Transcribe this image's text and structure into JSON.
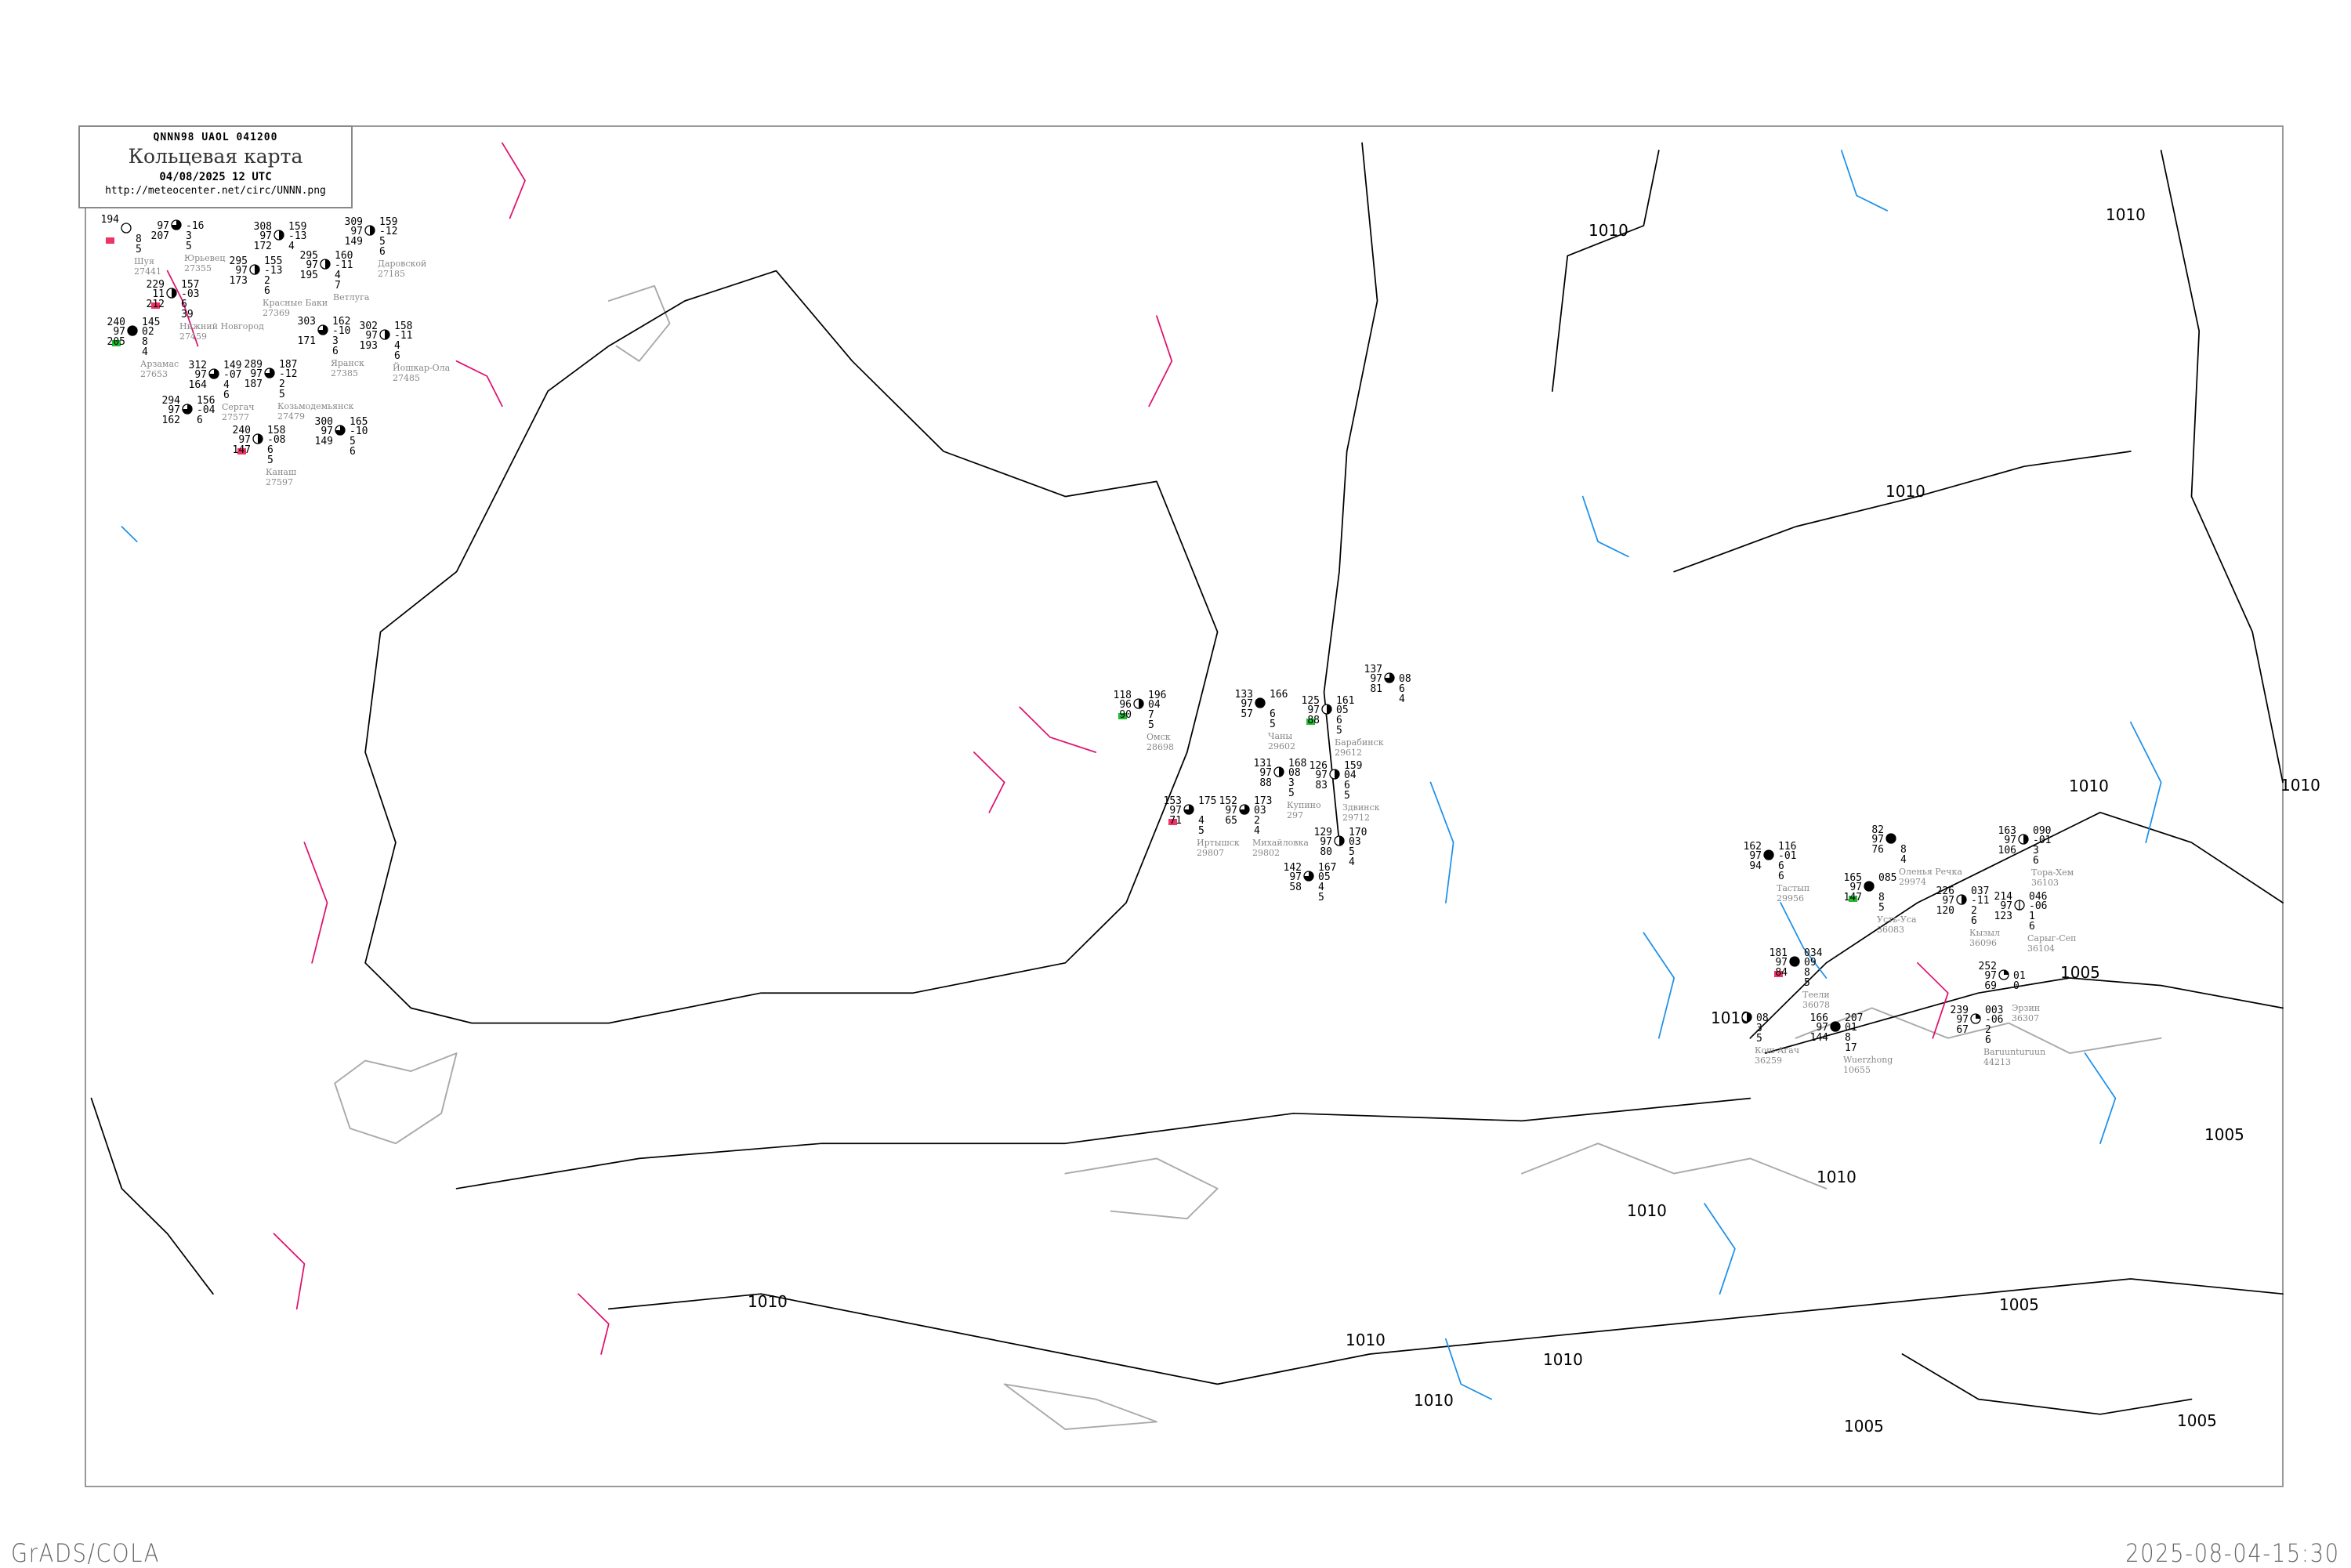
{
  "header": {
    "code_line": "QNNN98   UAOL   041200",
    "title": "Кольцевая карта",
    "datetime": "04/08/2025 12 UTC",
    "url": "http://meteocenter.net/circ/UNNN.png"
  },
  "footer": {
    "software": "GrADS/COLA",
    "generated": "2025-08-04-15:30"
  },
  "colors": {
    "isobar": "#000000",
    "coastline": "#aaaaaa",
    "pressure_tendency_pos": "#e0106e",
    "pressure_tendency_neg": "#1e90e8",
    "flag_red": "#ee3366",
    "flag_green": "#22bb33",
    "station_name": "#888888"
  },
  "isobar_labels": [
    "1010",
    "1010",
    "1010",
    "1010",
    "1005",
    "1010",
    "1010",
    "1005",
    "1005",
    "1005",
    "1005",
    "1010",
    "1010",
    "1010",
    "1010",
    "1010",
    "1010"
  ],
  "stations": [
    {
      "name": "Омск",
      "id": "28698",
      "tl": "118",
      "ml": "96",
      "bl": "90",
      "tr": "196",
      "mr": "04",
      "r3": "7",
      "r4": "5",
      "cloud": 0.5,
      "flag": "green"
    },
    {
      "name": "Чаны",
      "id": "29602",
      "tl": "133",
      "ml": "97",
      "bl": "57",
      "tr": "166",
      "mr": "",
      "r3": "6",
      "r4": "5",
      "cloud": 1
    },
    {
      "name": "Барабинск",
      "id": "29612",
      "tl": "125",
      "ml": "97",
      "bl": "88",
      "tr": "161",
      "mr": "05",
      "r3": "6",
      "r4": "5",
      "cloud": 0.5,
      "flag": "green"
    },
    {
      "name": "Здвинск",
      "id": "29712",
      "tl": "126",
      "ml": "97",
      "bl": "83",
      "tr": "159",
      "mr": "04",
      "r3": "6",
      "r4": "5",
      "cloud": 0.5
    },
    {
      "name": "Купино",
      "id": "297",
      "tl": "131",
      "ml": "97",
      "bl": "88",
      "tr": "168",
      "mr": "08",
      "r3": "3",
      "r4": "5",
      "cloud": 0.5
    },
    {
      "name": "Михайловка",
      "id": "29802",
      "tl": "152",
      "ml": "97",
      "bl": "65",
      "tr": "173",
      "mr": "03",
      "r3": "2",
      "r4": "4",
      "cloud": 0.75
    },
    {
      "name": "Иртышск",
      "id": "29807",
      "tl": "153",
      "ml": "97",
      "bl": "71",
      "tr": "175",
      "mr": "",
      "r3": "4",
      "r4": "5",
      "cloud": 0.75,
      "flag": "red"
    },
    {
      "name": "",
      "id": "",
      "tl": "129",
      "ml": "97",
      "bl": "80",
      "tr": "170",
      "mr": "03",
      "r3": "5",
      "r4": "4",
      "cloud": 0.5
    },
    {
      "name": "",
      "id": "",
      "tl": "142",
      "ml": "97",
      "bl": "58",
      "tr": "167",
      "mr": "05",
      "r3": "4",
      "r4": "5",
      "cloud": 0.75
    },
    {
      "name": "",
      "id": "",
      "tl": "137",
      "ml": "97",
      "bl": "81",
      "tr": "",
      "mr": "08",
      "r3": "6",
      "r4": "4",
      "cloud": 0.75
    },
    {
      "name": "Тастып",
      "id": "29956",
      "tl": "162",
      "ml": "97",
      "bl": "94",
      "tr": "116",
      "mr": "-01",
      "r3": "6",
      "r4": "6",
      "cloud": 1
    },
    {
      "name": "Оленья Речка",
      "id": "29974",
      "tl": "82",
      "ml": "97",
      "bl": "76",
      "tr": "",
      "mr": "",
      "r3": "8",
      "r4": "4",
      "cloud": 1
    },
    {
      "name": "Усть-Уса",
      "id": "36083",
      "tl": "165",
      "ml": "97",
      "bl": "147",
      "tr": "085",
      "mr": "",
      "r3": "8",
      "r4": "5",
      "cloud": 1,
      "flag": "green"
    },
    {
      "name": "Кызыл",
      "id": "36096",
      "tl": "226",
      "ml": "97",
      "bl": "120",
      "tr": "037",
      "mr": "-11",
      "r3": "2",
      "r4": "6",
      "cloud": 0.5
    },
    {
      "name": "Сарыг-Сеп",
      "id": "36104",
      "tl": "214",
      "ml": "97",
      "bl": "123",
      "tr": "046",
      "mr": "-06",
      "r3": "1",
      "r4": "6",
      "cloud": 0.1
    },
    {
      "name": "Тора-Хем",
      "id": "36103",
      "tl": "163",
      "ml": "97",
      "bl": "106",
      "tr": "090",
      "mr": "-01",
      "r3": "3",
      "r4": "6",
      "cloud": 0.5
    },
    {
      "name": "Теели",
      "id": "36078",
      "tl": "181",
      "ml": "97",
      "bl": "84",
      "tr": "034",
      "mr": "09",
      "r3": "8",
      "r4": "5",
      "cloud": 1,
      "flag": "red"
    },
    {
      "name": "Эрзин",
      "id": "36307",
      "tl": "252",
      "ml": "97",
      "bl": "69",
      "tr": "",
      "mr": "01",
      "r3": "0",
      "r4": "",
      "cloud": 0.25
    },
    {
      "name": "Baruunturuun",
      "id": "44213",
      "tl": "239",
      "ml": "97",
      "bl": "67",
      "tr": "003",
      "mr": "-06",
      "r3": "2",
      "r4": "6",
      "cloud": 0.25
    },
    {
      "name": "Кош-Агач",
      "id": "36259",
      "tl": "",
      "ml": "",
      "bl": "",
      "tr": "",
      "mr": "08",
      "r3": "3",
      "r4": "5",
      "cloud": 0.5
    },
    {
      "name": "Wuerzhong",
      "id": "10655",
      "tl": "166",
      "ml": "97",
      "bl": "144",
      "tr": "207",
      "mr": "01",
      "r3": "8",
      "r4": "17",
      "cloud": 1
    },
    {
      "name": "Юрьевец",
      "id": "27355",
      "tl": "",
      "ml": "97",
      "bl": "207",
      "tr": "",
      "mr": "-16",
      "r3": "3",
      "r4": "5",
      "cloud": 0.75
    },
    {
      "name": "Нижний Новгород",
      "id": "27459",
      "tl": "229",
      "ml": "11",
      "bl": "212",
      "tr": "157",
      "mr": "-03",
      "r3": "6",
      "r4": "39",
      "cloud": 0.5,
      "flag": "red"
    },
    {
      "name": "Красные Баки",
      "id": "27369",
      "tl": "295",
      "ml": "97",
      "bl": "173",
      "tr": "155",
      "mr": "-13",
      "r3": "2",
      "r4": "6",
      "cloud": 0.5
    },
    {
      "name": "",
      "id": "",
      "tl": "308",
      "ml": "97",
      "bl": "172",
      "tr": "159",
      "mr": "-13",
      "r3": "4",
      "r4": "",
      "cloud": 0.5
    },
    {
      "name": "Ветлуга",
      "id": "",
      "tl": "295",
      "ml": "97",
      "bl": "195",
      "tr": "160",
      "mr": "-11",
      "r3": "4",
      "r4": "7",
      "cloud": 0.5
    },
    {
      "name": "Яранск",
      "id": "27385",
      "tl": "303",
      "ml": "",
      "bl": "171",
      "tr": "162",
      "mr": "-10",
      "r3": "3",
      "r4": "6",
      "cloud": 0.75
    },
    {
      "name": "Арзамас",
      "id": "27653",
      "tl": "240",
      "ml": "97",
      "bl": "205",
      "tr": "145",
      "mr": "02",
      "r3": "8",
      "r4": "4",
      "cloud": 1,
      "flag": "green"
    },
    {
      "name": "Сергач",
      "id": "27577",
      "tl": "312",
      "ml": "97",
      "bl": "164",
      "tr": "149",
      "mr": "-07",
      "r3": "4",
      "r4": "6",
      "cloud": 0.75
    },
    {
      "name": "Козьмодемьянск",
      "id": "27479",
      "tl": "289",
      "ml": "97",
      "bl": "187",
      "tr": "187",
      "mr": "-12",
      "r3": "2",
      "r4": "5",
      "cloud": 0.75
    },
    {
      "name": "Йошкар-Ола",
      "id": "27485",
      "tl": "302",
      "ml": "97",
      "bl": "193",
      "tr": "158",
      "mr": "-11",
      "r3": "4",
      "r4": "6",
      "cloud": 0.5
    },
    {
      "name": "Канаш",
      "id": "27597",
      "tl": "240",
      "ml": "97",
      "bl": "147",
      "tr": "158",
      "mr": "-08",
      "r3": "6",
      "r4": "5",
      "cloud": 0.5,
      "flag": "red"
    },
    {
      "name": "Даровской",
      "id": "27185",
      "tl": "309",
      "ml": "97",
      "bl": "149",
      "tr": "159",
      "mr": "-12",
      "r3": "5",
      "r4": "6",
      "cloud": 0.5
    },
    {
      "name": "",
      "id": "",
      "tl": "300",
      "ml": "97",
      "bl": "149",
      "tr": "165",
      "mr": "-10",
      "r3": "5",
      "r4": "6",
      "cloud": 0.75
    },
    {
      "name": "",
      "id": "",
      "tl": "294",
      "ml": "97",
      "bl": "162",
      "tr": "156",
      "mr": "-04",
      "r3": "6",
      "r4": "",
      "cloud": 0.75
    },
    {
      "name": "Шуя",
      "id": "27441",
      "tl": "194",
      "ml": "",
      "bl": "",
      "tr": "",
      "mr": "",
      "r3": "8",
      "r4": "5",
      "cloud": 0,
      "flag": "red"
    }
  ]
}
